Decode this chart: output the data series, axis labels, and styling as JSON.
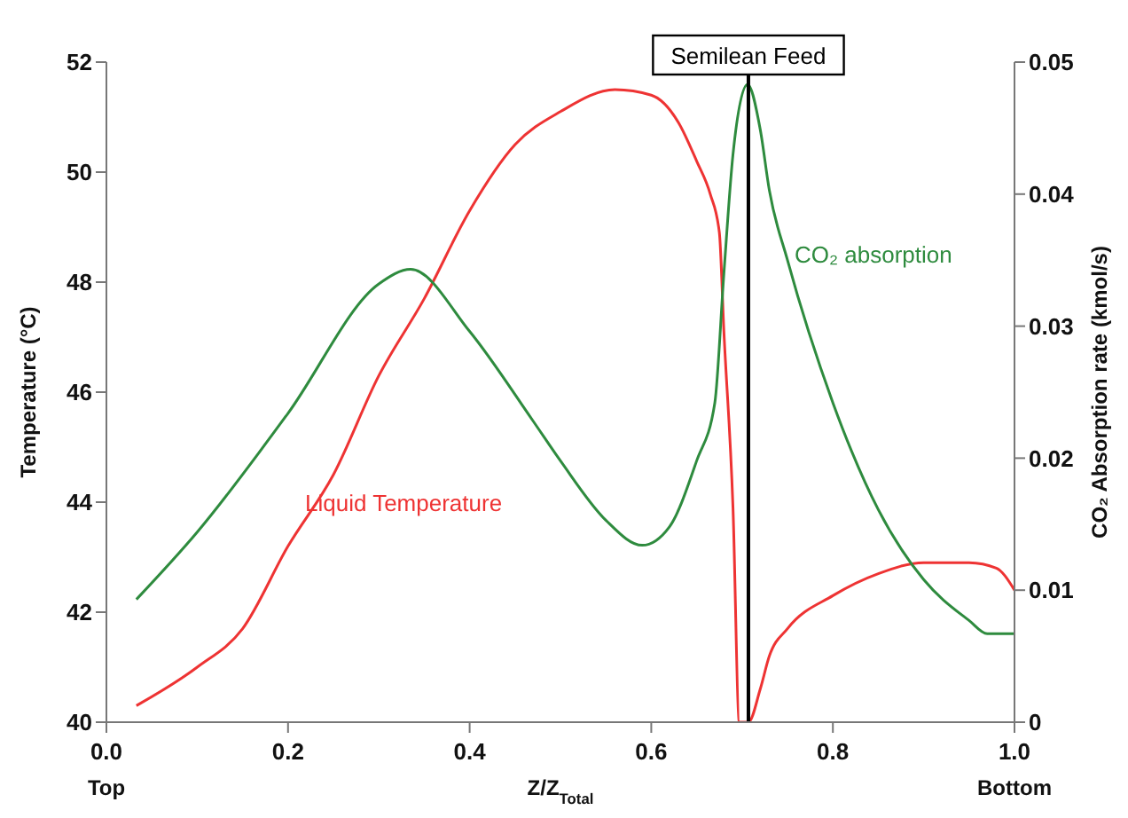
{
  "chart_data": {
    "type": "line",
    "xlabel": "Z/Z$_{Total}$",
    "ylabel": "Temperature (°C)",
    "y2label": "CO₂ Absorption rate (kmol/s)",
    "xlim": [
      0,
      1
    ],
    "xticks": [
      {
        "value": 0,
        "label": "0.0"
      },
      {
        "value": 0.2,
        "label": "0.2"
      },
      {
        "value": 0.4,
        "label": "0.4"
      },
      {
        "value": 0.6,
        "label": "0.6"
      },
      {
        "value": 0.8,
        "label": "0.8"
      },
      {
        "value": 1,
        "label": "1.0"
      }
    ],
    "ylim": [
      40,
      52
    ],
    "yticks": [
      40,
      42,
      44,
      46,
      48,
      50,
      52
    ],
    "y2lim": [
      0,
      0.05
    ],
    "y2ticks": [
      0,
      0.01,
      0.02,
      0.03,
      0.04,
      0.05
    ],
    "series": [
      {
        "name": "Liquid Temperature",
        "color": "#ee3333",
        "x": [
          0.033,
          0.1,
          0.15,
          0.2,
          0.25,
          0.3,
          0.35,
          0.4,
          0.45,
          0.5,
          0.56,
          0.6,
          0.63,
          0.65,
          0.665,
          0.675,
          0.68,
          0.69,
          0.697,
          0.707,
          0.72,
          0.73,
          0.75,
          0.8,
          0.85,
          0.9,
          0.95,
          0.98,
          1.0
        ],
        "values": [
          40.3,
          41.0,
          41.7,
          43.2,
          44.5,
          46.3,
          47.7,
          49.3,
          50.5,
          51.1,
          51.5,
          51.4,
          50.9,
          50.2,
          49.6,
          48.9,
          47.1,
          43.9,
          40.0,
          40.0,
          40.6,
          41.2,
          41.7,
          42.3,
          42.7,
          42.9,
          42.9,
          42.8,
          42.4
        ]
      },
      {
        "name": "CO₂ absorption",
        "color": "#2e8b3e",
        "axis": "y2",
        "x": [
          0.033,
          0.1,
          0.2,
          0.3,
          0.335,
          0.4,
          0.469,
          0.5,
          0.55,
          0.59,
          0.62,
          0.65,
          0.67,
          0.68,
          0.69,
          0.706,
          0.72,
          0.73,
          0.75,
          0.8,
          0.85,
          0.9,
          0.95,
          0.97,
          1.0
        ],
        "values": [
          0.0093,
          0.0144,
          0.0234,
          0.0332,
          0.0343,
          0.0296,
          0.0229,
          0.0198,
          0.0153,
          0.0134,
          0.0148,
          0.0198,
          0.0242,
          0.034,
          0.043,
          0.0483,
          0.0449,
          0.0403,
          0.035,
          0.0242,
          0.0161,
          0.0108,
          0.0077,
          0.0067,
          0.0067
        ]
      }
    ],
    "ref_lines": [
      {
        "axis": "x",
        "value": 0.707,
        "label": "Semilean Feed",
        "color": "#000000"
      }
    ],
    "annotations": [
      "Top",
      "Bottom"
    ]
  }
}
